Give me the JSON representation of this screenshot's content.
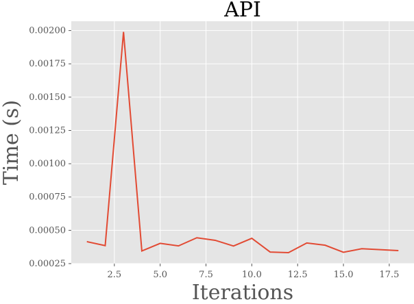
{
  "chart_data": {
    "type": "line",
    "title": "API",
    "xlabel": "Iterations",
    "ylabel": "Time (s)",
    "xlim": [
      0.15,
      18.85
    ],
    "ylim": [
      0.00025,
      0.00207
    ],
    "xticks": [
      2.5,
      5.0,
      7.5,
      10.0,
      12.5,
      15.0,
      17.5
    ],
    "xtick_labels": [
      "2.5",
      "5.0",
      "7.5",
      "10.0",
      "12.5",
      "15.0",
      "17.5"
    ],
    "yticks": [
      0.00025,
      0.0005,
      0.00075,
      0.001,
      0.00125,
      0.0015,
      0.00175,
      0.002
    ],
    "ytick_labels": [
      "0.00025",
      "0.00050",
      "0.00075",
      "0.00100",
      "0.00125",
      "0.00150",
      "0.00175",
      "0.00200"
    ],
    "grid": true,
    "background": "#e5e5e5",
    "grid_color": "#ffffff",
    "series": [
      {
        "color": "#e24a33",
        "x": [
          1,
          2,
          3,
          4,
          5,
          6,
          7,
          8,
          9,
          10,
          11,
          12,
          13,
          14,
          15,
          16,
          17,
          18
        ],
        "y": [
          0.000415,
          0.000385,
          0.00199,
          0.000345,
          0.000402,
          0.000383,
          0.000444,
          0.000425,
          0.000382,
          0.00044,
          0.000337,
          0.000332,
          0.000405,
          0.000388,
          0.000335,
          0.000362,
          0.000355,
          0.000348
        ]
      }
    ]
  }
}
